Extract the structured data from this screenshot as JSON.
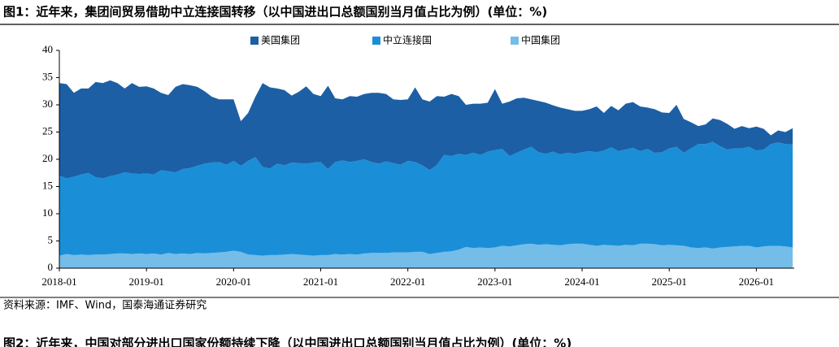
{
  "header": {
    "title": "图1：近年来，集团间贸易借助中立连接国转移（以中国进出口总额国别当月值占比为例）(单位：%)"
  },
  "chart_data": {
    "type": "stacked-area",
    "categories": [
      "2018-01",
      null,
      null,
      null,
      null,
      null,
      null,
      null,
      null,
      null,
      null,
      null,
      "2019-01",
      null,
      null,
      null,
      null,
      null,
      null,
      null,
      null,
      null,
      null,
      null,
      "2020-01",
      null,
      null,
      null,
      null,
      null,
      null,
      null,
      null,
      null,
      null,
      null,
      "2021-01",
      null,
      null,
      null,
      null,
      null,
      null,
      null,
      null,
      null,
      null,
      null,
      "2022-01",
      null,
      null,
      null,
      null,
      null,
      null,
      null,
      null,
      null,
      null,
      null,
      "2023-01",
      null,
      null,
      null,
      null,
      null,
      null,
      null,
      null,
      null,
      null,
      null,
      "2024-01",
      null,
      null,
      null,
      null,
      null,
      null,
      null,
      null,
      null,
      null,
      null,
      "2025-01",
      null,
      null,
      null,
      null,
      null,
      null,
      null,
      null,
      null,
      null,
      null,
      "2026-01",
      null,
      null,
      null,
      null,
      null
    ],
    "series": [
      {
        "name": "美国集团",
        "color": "#1c5fa5",
        "values": [
          17.0,
          17.3,
          15.4,
          15.8,
          15.5,
          17.5,
          17.5,
          17.6,
          16.8,
          15.4,
          16.6,
          16.0,
          16.0,
          15.8,
          14.2,
          14.0,
          15.7,
          15.6,
          15.2,
          14.5,
          13.3,
          12.1,
          11.5,
          12.0,
          11.3,
          8.2,
          8.8,
          11.1,
          15.4,
          14.9,
          13.8,
          13.8,
          12.3,
          13.1,
          14.2,
          12.6,
          12.1,
          15.3,
          11.7,
          11.2,
          12.1,
          11.8,
          12.0,
          12.7,
          13.0,
          12.4,
          11.7,
          11.9,
          11.3,
          13.7,
          12.1,
          12.6,
          12.6,
          10.7,
          11.4,
          10.6,
          9.2,
          9.0,
          9.4,
          9.0,
          11.2,
          8.3,
          10.0,
          10.0,
          9.5,
          8.7,
          9.4,
          9.4,
          8.5,
          8.6,
          8.0,
          7.9,
          7.6,
          7.7,
          8.4,
          6.9,
          7.6,
          7.5,
          8.4,
          8.4,
          8.2,
          7.6,
          8.0,
          7.3,
          6.5,
          7.7,
          6.2,
          4.8,
          3.3,
          3.6,
          4.3,
          4.8,
          4.7,
          3.6,
          4.1,
          3.4,
          4.4,
          3.8,
          1.6,
          2.2,
          2.2,
          3.0
        ]
      },
      {
        "name": "中立连接国",
        "color": "#1a8fd8",
        "values": [
          14.7,
          13.9,
          14.4,
          14.7,
          15.1,
          14.2,
          14.0,
          14.3,
          14.5,
          14.9,
          14.8,
          14.6,
          14.8,
          14.5,
          15.5,
          15.0,
          15.0,
          15.5,
          15.8,
          16.0,
          16.5,
          16.6,
          16.6,
          16.0,
          16.5,
          15.8,
          17.2,
          18.0,
          16.3,
          15.9,
          16.8,
          16.4,
          16.8,
          16.8,
          16.8,
          17.1,
          17.1,
          15.8,
          16.9,
          17.3,
          16.9,
          17.2,
          17.3,
          16.7,
          16.4,
          16.8,
          16.4,
          16.1,
          16.8,
          16.5,
          15.9,
          15.4,
          16.2,
          17.8,
          17.5,
          17.6,
          16.9,
          17.5,
          17.0,
          17.7,
          17.9,
          17.8,
          16.6,
          17.0,
          17.4,
          17.8,
          17.0,
          16.6,
          17.1,
          16.7,
          16.8,
          16.5,
          16.8,
          17.2,
          17.2,
          17.3,
          18.0,
          17.4,
          17.5,
          17.9,
          17.0,
          17.4,
          16.8,
          17.1,
          17.7,
          18.1,
          17.1,
          18.2,
          19.1,
          19.0,
          19.6,
          18.6,
          17.9,
          18.0,
          17.9,
          18.2,
          17.8,
          17.8,
          18.7,
          19.0,
          18.8,
          18.9
        ]
      },
      {
        "name": "中国集团",
        "color": "#74bde9",
        "values": [
          2.3,
          2.6,
          2.4,
          2.5,
          2.4,
          2.5,
          2.5,
          2.6,
          2.7,
          2.7,
          2.6,
          2.7,
          2.6,
          2.7,
          2.5,
          2.8,
          2.6,
          2.7,
          2.6,
          2.8,
          2.7,
          2.8,
          2.9,
          3.0,
          3.2,
          3.0,
          2.5,
          2.4,
          2.3,
          2.4,
          2.4,
          2.5,
          2.6,
          2.5,
          2.4,
          2.3,
          2.4,
          2.4,
          2.6,
          2.5,
          2.6,
          2.5,
          2.7,
          2.8,
          2.8,
          2.8,
          2.9,
          2.9,
          2.9,
          3.0,
          3.0,
          2.6,
          2.8,
          3.0,
          3.1,
          3.4,
          3.9,
          3.7,
          3.8,
          3.7,
          3.8,
          4.1,
          4.0,
          4.2,
          4.4,
          4.5,
          4.3,
          4.4,
          4.3,
          4.2,
          4.4,
          4.5,
          4.5,
          4.3,
          4.1,
          4.3,
          4.2,
          4.1,
          4.3,
          4.2,
          4.5,
          4.5,
          4.4,
          4.2,
          4.3,
          4.2,
          4.1,
          3.8,
          3.7,
          3.8,
          3.6,
          3.8,
          3.9,
          4.0,
          4.1,
          4.1,
          3.8,
          4.0,
          4.1,
          4.1,
          4.0,
          3.8
        ]
      }
    ],
    "ylim": [
      0,
      40
    ],
    "yticks": [
      0,
      5,
      10,
      15,
      20,
      25,
      30,
      35,
      40
    ],
    "grid": false,
    "legend": "top"
  },
  "footer": {
    "source": "资料来源：IMF、Wind，国泰海通证券研究",
    "next_title": "图2：近年来，中国对部分进出口国家份额持续下降（以中国进出口总额国别当月值占比为例）(单位：%)"
  }
}
